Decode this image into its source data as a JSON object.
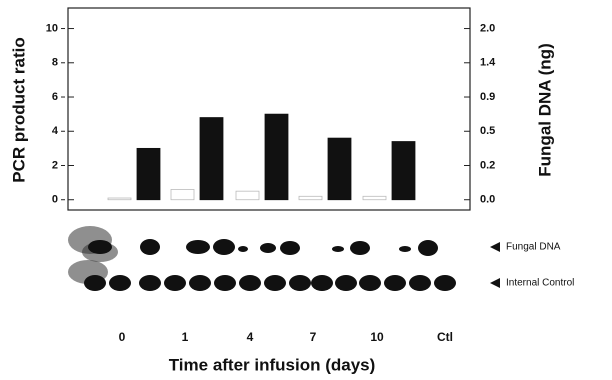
{
  "chart_data": {
    "type": "bar",
    "y_label": "PCR product ratio",
    "y2_label": "Fungal DNA (ng)",
    "x_label": "Time after infusion (days)",
    "categories": [
      "0",
      "1",
      "4",
      "7",
      "10",
      "Ctl"
    ],
    "series": [
      {
        "color": "#ffffff",
        "values": [
          0.1,
          0.6,
          0.5,
          0.2,
          0.2,
          null
        ]
      },
      {
        "color": "#111111",
        "values": [
          3.0,
          4.8,
          5.0,
          3.6,
          3.4,
          null
        ]
      }
    ],
    "ylim": [
      -0.6,
      11.2
    ],
    "yticks": [
      0,
      2,
      4,
      6,
      8,
      10
    ],
    "y2ticks": [
      {
        "value": 0,
        "label": "0.0"
      },
      0.2,
      0.5,
      0.9,
      1.4,
      {
        "value": 2,
        "label": "2.0"
      }
    ],
    "annotations": [
      "Fungal DNA",
      "Internal Control"
    ]
  }
}
